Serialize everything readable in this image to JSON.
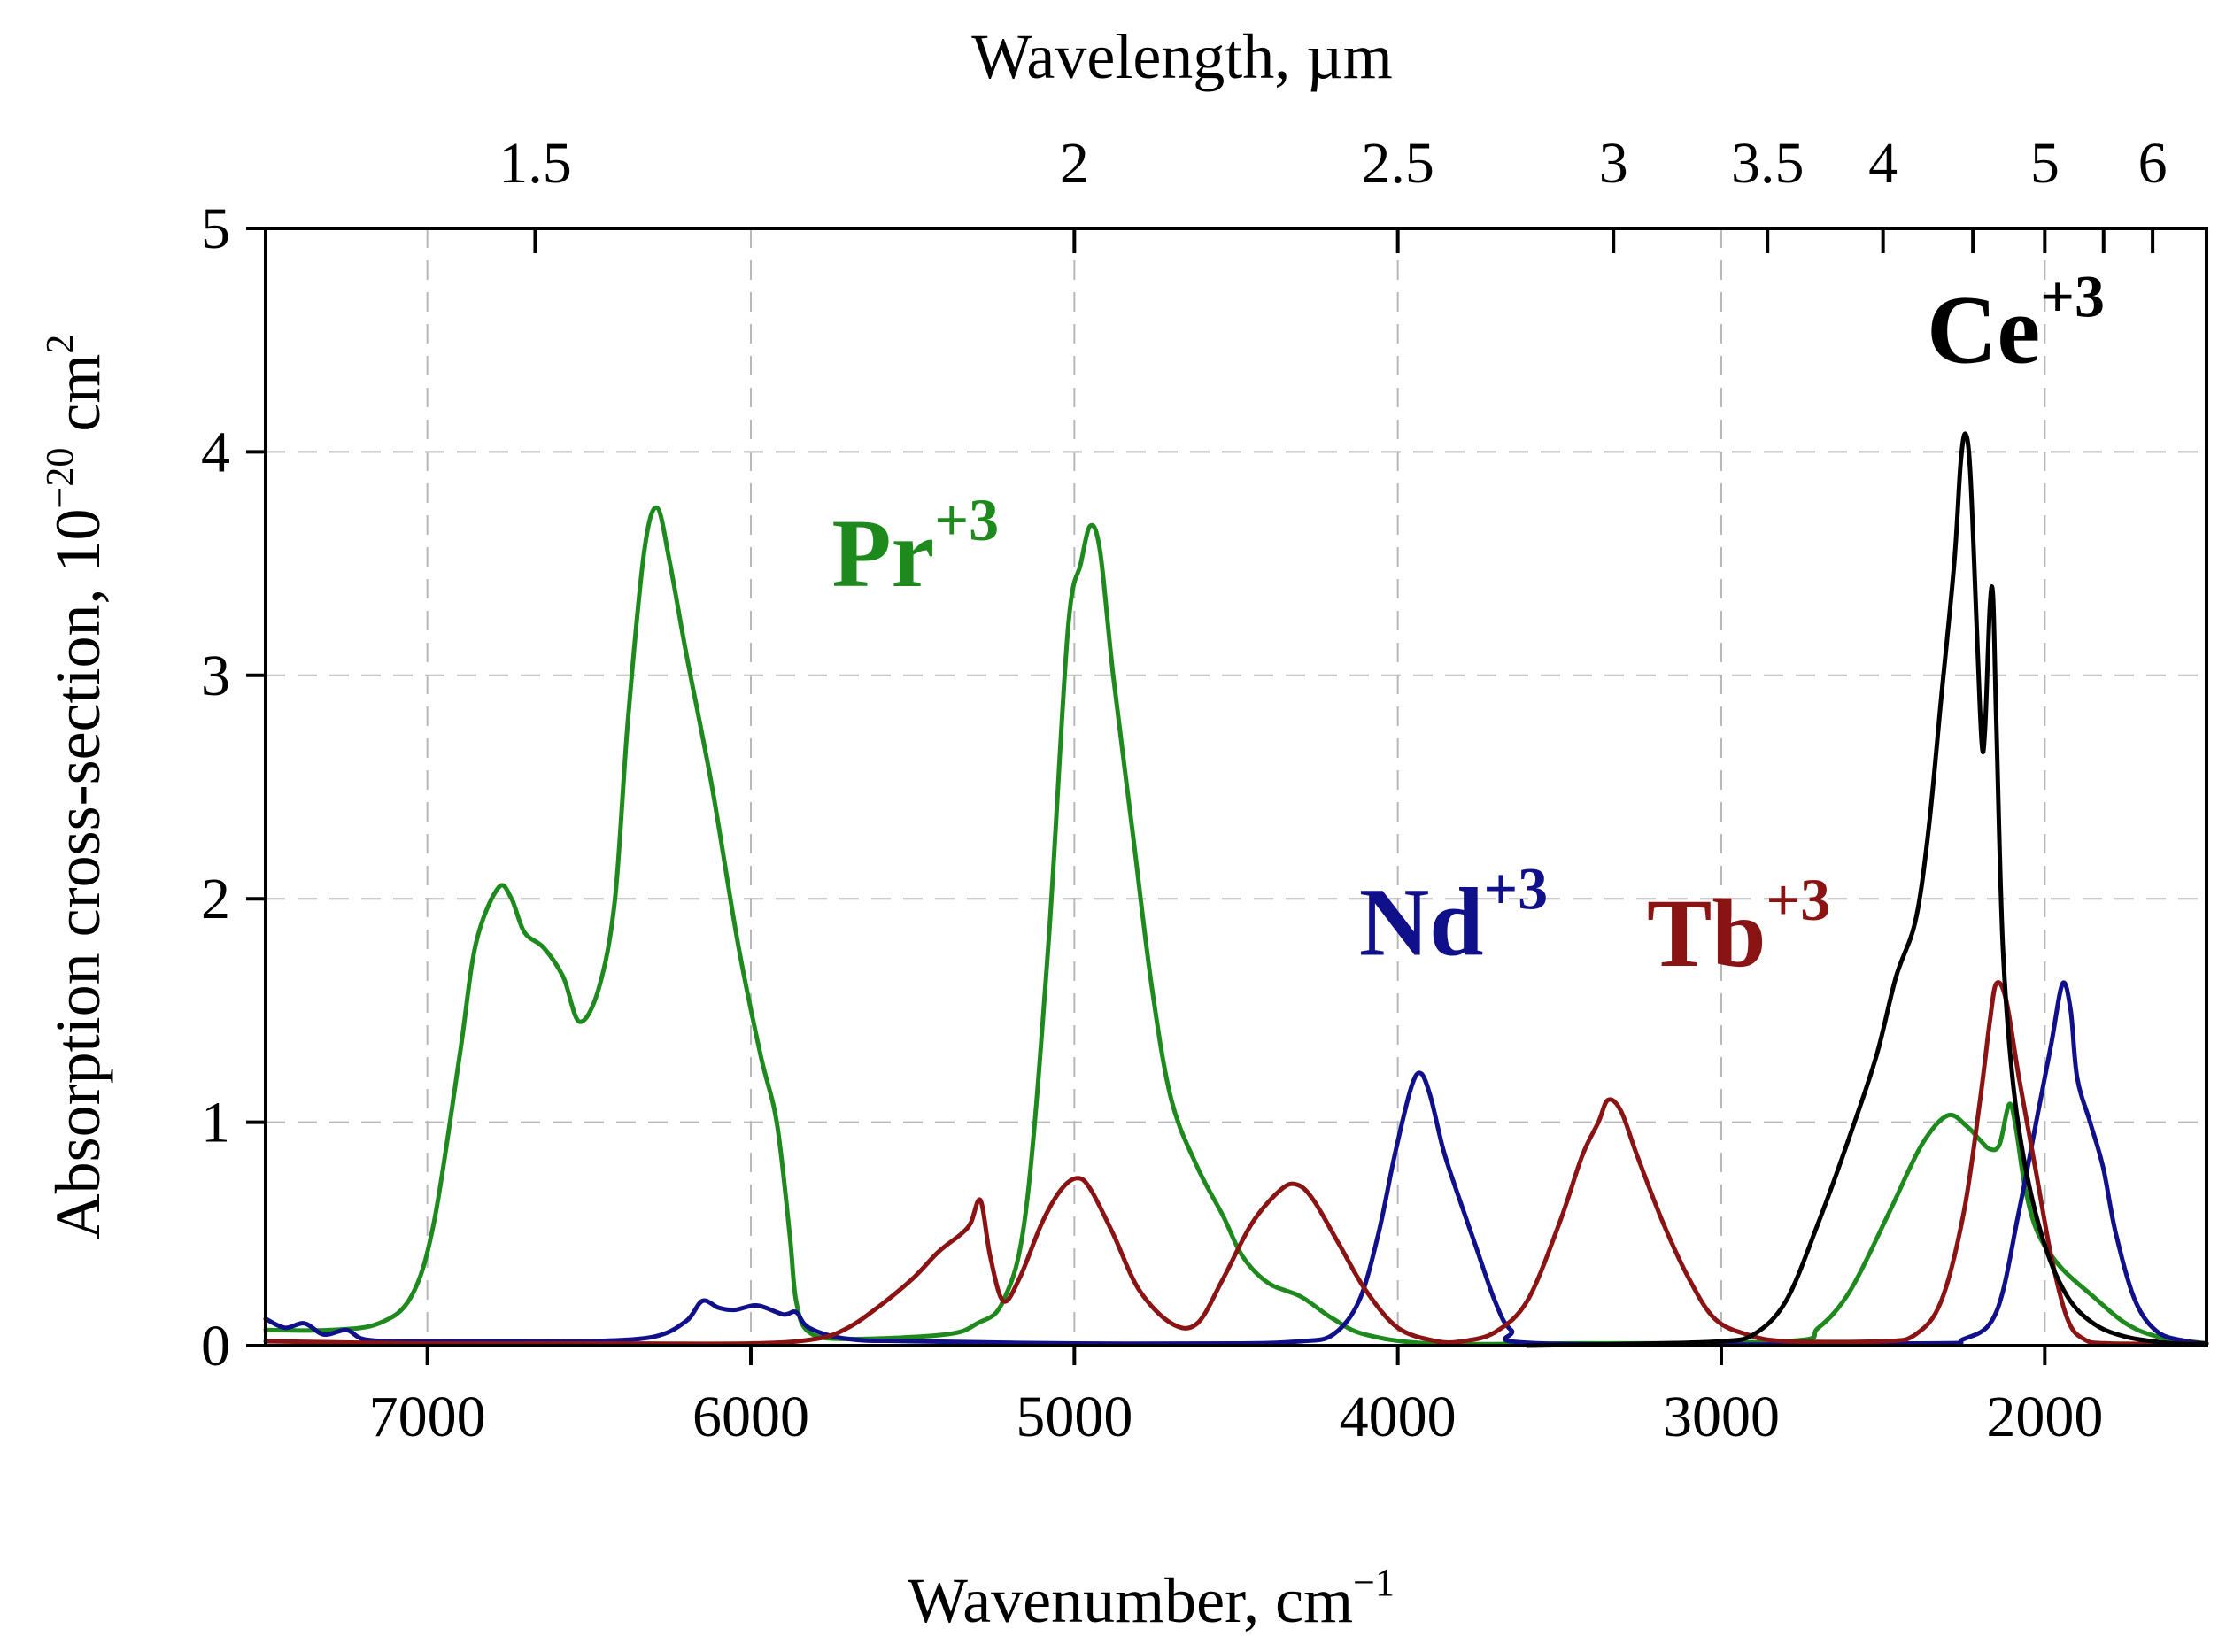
{
  "chart_data": {
    "type": "line",
    "xlabel": "Wavenumber, cm",
    "xlabel_sup": "−1",
    "x2label": "Wavelength, µm",
    "ylabel": "Absorption cross-section, 10",
    "ylabel_sup": "−20",
    "ylabel_unit": " cm",
    "ylabel_unit_sup": "2",
    "xlim": [
      7500,
      1500
    ],
    "ylim": [
      0,
      5
    ],
    "grid": true,
    "x_ticks": [
      7000,
      6000,
      5000,
      4000,
      3000,
      2000
    ],
    "x_tick_labels": [
      "7000",
      "6000",
      "5000",
      "4000",
      "3000",
      "2000"
    ],
    "y_ticks": [
      0,
      1,
      2,
      3,
      4,
      5
    ],
    "y_tick_labels": [
      "0",
      "1",
      "2",
      "3",
      "4",
      "5"
    ],
    "top_axis_ticks_um": [
      1.5,
      2,
      2.5,
      3,
      3.5,
      4,
      5,
      6
    ],
    "top_axis_tick_labels": [
      "1.5",
      "2",
      "2.5",
      "3",
      "3.5",
      "4",
      "5",
      "6"
    ],
    "top_axis_minor_ticks_um": [
      4.5,
      5.5
    ],
    "series": [
      {
        "name": "Pr",
        "label": "Pr",
        "label_sup": "+3",
        "color": "#1e8a1e",
        "label_anchor": [
          5750,
          3.4
        ],
        "points": [
          [
            7500,
            0.07
          ],
          [
            7300,
            0.07
          ],
          [
            7150,
            0.1
          ],
          [
            7050,
            0.22
          ],
          [
            6980,
            0.55
          ],
          [
            6900,
            1.3
          ],
          [
            6850,
            1.8
          ],
          [
            6780,
            2.05
          ],
          [
            6740,
            2.0
          ],
          [
            6700,
            1.85
          ],
          [
            6640,
            1.78
          ],
          [
            6580,
            1.65
          ],
          [
            6530,
            1.45
          ],
          [
            6470,
            1.6
          ],
          [
            6420,
            2.0
          ],
          [
            6380,
            2.8
          ],
          [
            6330,
            3.55
          ],
          [
            6290,
            3.75
          ],
          [
            6250,
            3.5
          ],
          [
            6200,
            3.1
          ],
          [
            6120,
            2.5
          ],
          [
            6040,
            1.8
          ],
          [
            5970,
            1.3
          ],
          [
            5920,
            1.0
          ],
          [
            5880,
            0.5
          ],
          [
            5860,
            0.2
          ],
          [
            5820,
            0.06
          ],
          [
            5700,
            0.03
          ],
          [
            5400,
            0.05
          ],
          [
            5300,
            0.1
          ],
          [
            5220,
            0.2
          ],
          [
            5150,
            0.6
          ],
          [
            5080,
            1.8
          ],
          [
            5020,
            3.2
          ],
          [
            4980,
            3.5
          ],
          [
            4950,
            3.67
          ],
          [
            4920,
            3.55
          ],
          [
            4880,
            3.0
          ],
          [
            4820,
            2.3
          ],
          [
            4760,
            1.6
          ],
          [
            4700,
            1.1
          ],
          [
            4620,
            0.8
          ],
          [
            4540,
            0.58
          ],
          [
            4480,
            0.4
          ],
          [
            4400,
            0.28
          ],
          [
            4300,
            0.22
          ],
          [
            4200,
            0.12
          ],
          [
            4100,
            0.05
          ],
          [
            3900,
            0.01
          ],
          [
            3500,
            0.01
          ],
          [
            2800,
            0.02
          ],
          [
            2700,
            0.08
          ],
          [
            2600,
            0.25
          ],
          [
            2480,
            0.6
          ],
          [
            2380,
            0.9
          ],
          [
            2300,
            1.03
          ],
          [
            2240,
            0.98
          ],
          [
            2200,
            0.92
          ],
          [
            2170,
            0.88
          ],
          [
            2140,
            0.9
          ],
          [
            2110,
            1.08
          ],
          [
            2090,
            0.98
          ],
          [
            2060,
            0.7
          ],
          [
            2020,
            0.5
          ],
          [
            1950,
            0.35
          ],
          [
            1850,
            0.22
          ],
          [
            1750,
            0.1
          ],
          [
            1650,
            0.04
          ],
          [
            1500,
            0.01
          ]
        ]
      },
      {
        "name": "Nd",
        "label": "Nd",
        "label_sup": "+3",
        "color": "#10108a",
        "label_anchor": [
          4120,
          1.75
        ],
        "points": [
          [
            7500,
            0.12
          ],
          [
            7440,
            0.08
          ],
          [
            7380,
            0.1
          ],
          [
            7320,
            0.05
          ],
          [
            7250,
            0.07
          ],
          [
            7200,
            0.03
          ],
          [
            7100,
            0.02
          ],
          [
            6900,
            0.02
          ],
          [
            6700,
            0.02
          ],
          [
            6500,
            0.02
          ],
          [
            6300,
            0.04
          ],
          [
            6200,
            0.11
          ],
          [
            6150,
            0.2
          ],
          [
            6100,
            0.17
          ],
          [
            6050,
            0.16
          ],
          [
            5980,
            0.18
          ],
          [
            5900,
            0.14
          ],
          [
            5860,
            0.15
          ],
          [
            5820,
            0.08
          ],
          [
            5700,
            0.03
          ],
          [
            5500,
            0.02
          ],
          [
            5000,
            0.01
          ],
          [
            4500,
            0.01
          ],
          [
            4300,
            0.02
          ],
          [
            4200,
            0.05
          ],
          [
            4120,
            0.2
          ],
          [
            4060,
            0.5
          ],
          [
            4010,
            0.85
          ],
          [
            3960,
            1.15
          ],
          [
            3930,
            1.22
          ],
          [
            3900,
            1.12
          ],
          [
            3860,
            0.88
          ],
          [
            3820,
            0.7
          ],
          [
            3760,
            0.45
          ],
          [
            3700,
            0.2
          ],
          [
            3650,
            0.07
          ],
          [
            3550,
            0.01
          ],
          [
            2400,
            0.01
          ],
          [
            2250,
            0.03
          ],
          [
            2150,
            0.15
          ],
          [
            2080,
            0.6
          ],
          [
            2020,
            1.05
          ],
          [
            1980,
            1.35
          ],
          [
            1945,
            1.62
          ],
          [
            1920,
            1.5
          ],
          [
            1900,
            1.2
          ],
          [
            1860,
            1.0
          ],
          [
            1820,
            0.8
          ],
          [
            1780,
            0.5
          ],
          [
            1720,
            0.2
          ],
          [
            1650,
            0.06
          ],
          [
            1560,
            0.02
          ],
          [
            1500,
            0.01
          ]
        ]
      },
      {
        "name": "Tb",
        "label": "Tb",
        "label_sup": "+3",
        "color": "#8a1414",
        "label_anchor": [
          3230,
          1.7
        ],
        "points": [
          [
            7500,
            0.02
          ],
          [
            7000,
            0.01
          ],
          [
            6500,
            0.01
          ],
          [
            6000,
            0.01
          ],
          [
            5800,
            0.03
          ],
          [
            5700,
            0.08
          ],
          [
            5600,
            0.18
          ],
          [
            5500,
            0.3
          ],
          [
            5420,
            0.42
          ],
          [
            5350,
            0.5
          ],
          [
            5320,
            0.55
          ],
          [
            5290,
            0.65
          ],
          [
            5260,
            0.4
          ],
          [
            5220,
            0.2
          ],
          [
            5170,
            0.3
          ],
          [
            5100,
            0.55
          ],
          [
            5040,
            0.7
          ],
          [
            4990,
            0.75
          ],
          [
            4950,
            0.7
          ],
          [
            4880,
            0.5
          ],
          [
            4800,
            0.25
          ],
          [
            4700,
            0.1
          ],
          [
            4620,
            0.1
          ],
          [
            4540,
            0.3
          ],
          [
            4450,
            0.55
          ],
          [
            4360,
            0.7
          ],
          [
            4310,
            0.72
          ],
          [
            4260,
            0.65
          ],
          [
            4180,
            0.45
          ],
          [
            4100,
            0.25
          ],
          [
            4000,
            0.08
          ],
          [
            3880,
            0.02
          ],
          [
            3800,
            0.02
          ],
          [
            3700,
            0.06
          ],
          [
            3600,
            0.2
          ],
          [
            3500,
            0.55
          ],
          [
            3430,
            0.85
          ],
          [
            3380,
            1.0
          ],
          [
            3350,
            1.1
          ],
          [
            3310,
            1.05
          ],
          [
            3260,
            0.85
          ],
          [
            3180,
            0.55
          ],
          [
            3100,
            0.3
          ],
          [
            3020,
            0.12
          ],
          [
            2920,
            0.05
          ],
          [
            2800,
            0.02
          ],
          [
            2500,
            0.02
          ],
          [
            2400,
            0.05
          ],
          [
            2320,
            0.2
          ],
          [
            2250,
            0.6
          ],
          [
            2200,
            1.1
          ],
          [
            2170,
            1.45
          ],
          [
            2150,
            1.62
          ],
          [
            2120,
            1.55
          ],
          [
            2080,
            1.2
          ],
          [
            2030,
            0.8
          ],
          [
            1980,
            0.4
          ],
          [
            1930,
            0.12
          ],
          [
            1880,
            0.03
          ],
          [
            1800,
            0.01
          ],
          [
            1500,
            0.01
          ]
        ]
      },
      {
        "name": "Ce",
        "label": "Ce",
        "label_sup": "+3",
        "color": "#000000",
        "label_anchor": [
          2365,
          4.4
        ],
        "points": [
          [
            3600,
            0.0
          ],
          [
            3200,
            0.01
          ],
          [
            3000,
            0.02
          ],
          [
            2900,
            0.05
          ],
          [
            2800,
            0.2
          ],
          [
            2700,
            0.55
          ],
          [
            2600,
            0.95
          ],
          [
            2520,
            1.3
          ],
          [
            2460,
            1.65
          ],
          [
            2400,
            1.9
          ],
          [
            2360,
            2.3
          ],
          [
            2320,
            2.9
          ],
          [
            2280,
            3.5
          ],
          [
            2260,
            3.95
          ],
          [
            2245,
            4.08
          ],
          [
            2230,
            3.9
          ],
          [
            2210,
            3.2
          ],
          [
            2195,
            2.7
          ],
          [
            2185,
            2.75
          ],
          [
            2170,
            3.3
          ],
          [
            2160,
            3.35
          ],
          [
            2150,
            2.8
          ],
          [
            2130,
            1.8
          ],
          [
            2100,
            1.2
          ],
          [
            2060,
            0.8
          ],
          [
            2000,
            0.45
          ],
          [
            1930,
            0.22
          ],
          [
            1850,
            0.1
          ],
          [
            1750,
            0.04
          ],
          [
            1600,
            0.01
          ],
          [
            1500,
            0.01
          ]
        ]
      }
    ]
  }
}
